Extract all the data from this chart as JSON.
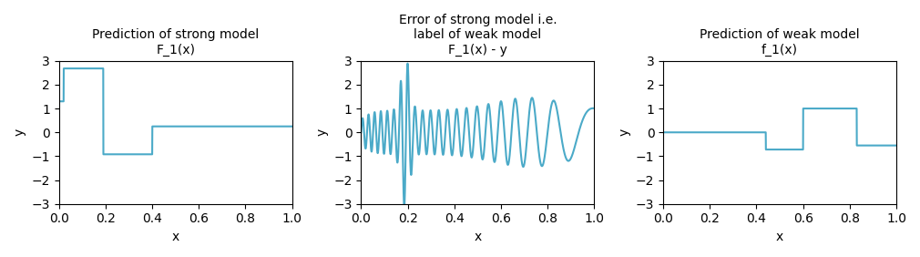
{
  "title1": "Prediction of strong model\nF_1(x)",
  "title2": "Error of strong model i.e.\nlabel of weak model\nF_1(x) - y",
  "title3": "Prediction of weak model\nf_1(x)",
  "xlabel": "x",
  "ylabel": "y",
  "ylim": [
    -3,
    3
  ],
  "xlim": [
    0.0,
    1.0
  ],
  "line_color": "#4baac8",
  "line_width": 1.5,
  "figsize": [
    10.1,
    2.82
  ],
  "dpi": 100,
  "plot1_steps": [
    [
      0.0,
      1.3
    ],
    [
      0.02,
      2.68
    ],
    [
      0.19,
      -0.92
    ],
    [
      0.4,
      0.25
    ],
    [
      1.0,
      0.25
    ]
  ],
  "plot3_steps": [
    [
      0.0,
      0.0
    ],
    [
      0.44,
      -0.72
    ],
    [
      0.6,
      1.0
    ],
    [
      0.83,
      -0.55
    ],
    [
      1.0,
      -0.55
    ]
  ],
  "error_n_points": 2000,
  "chirp_f0": 40,
  "chirp_f1": 2.5,
  "chirp_amplitude": 1.3
}
